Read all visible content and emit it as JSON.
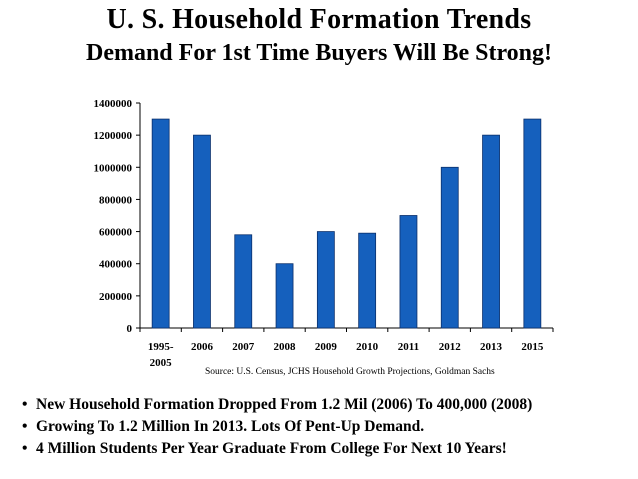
{
  "title": "U. S. Household Formation Trends",
  "subtitle": "Demand For 1st Time Buyers Will Be Strong!",
  "source": "Source:  U.S. Census, JCHS Household Growth Projections, Goldman Sachs",
  "bullets": [
    "New Household Formation Dropped From 1.2 Mil (2006) To 400,000 (2008)",
    "Growing To 1.2 Million In 2013. Lots Of Pent-Up Demand.",
    "4 Million Students Per Year Graduate From College For Next 10 Years!"
  ],
  "colors": {
    "bar": "#1560bd",
    "bar_edge": "#0a2f6b"
  },
  "chart_data": {
    "type": "bar",
    "categories": [
      "1995-2005",
      "2006",
      "2007",
      "2008",
      "2009",
      "2010",
      "2011",
      "2012",
      "2013",
      "2015"
    ],
    "category_label_lines": [
      [
        "1995-",
        "2005"
      ],
      [
        "2006"
      ],
      [
        "2007"
      ],
      [
        "2008"
      ],
      [
        "2009"
      ],
      [
        "2010"
      ],
      [
        "2011"
      ],
      [
        "2012"
      ],
      [
        "2013"
      ],
      [
        "2015"
      ]
    ],
    "values": [
      1300000,
      1200000,
      580000,
      400000,
      600000,
      590000,
      700000,
      1000000,
      1200000,
      1300000
    ],
    "yticks": [
      0,
      200000,
      400000,
      600000,
      800000,
      1000000,
      1200000,
      1400000
    ],
    "ylim": [
      0,
      1400000
    ],
    "grid": false,
    "legend": "none"
  }
}
